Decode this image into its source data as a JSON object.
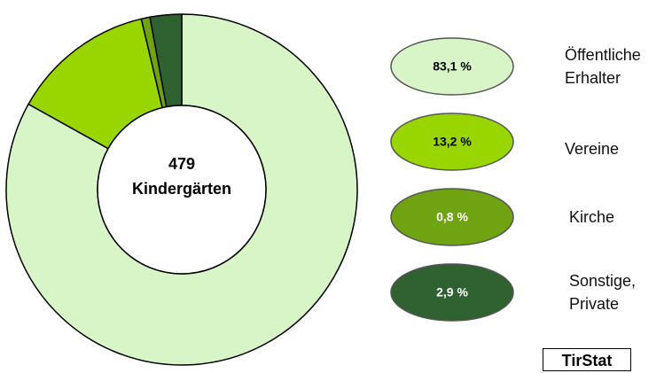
{
  "chart_data": {
    "type": "pie",
    "categories": [
      "Öffentliche Erhalter",
      "Vereine",
      "Kirche",
      "Sonstige, Private"
    ],
    "values": [
      83.1,
      13.2,
      0.8,
      2.9
    ],
    "value_labels": [
      "83,1 %",
      "13,2 %",
      "0,8 %",
      "2,9 %"
    ],
    "colors": [
      "#d8f5c8",
      "#99d600",
      "#6fa312",
      "#2f6230"
    ],
    "total": 479,
    "center_label": "Kindergärten",
    "source": "TirStat"
  }
}
